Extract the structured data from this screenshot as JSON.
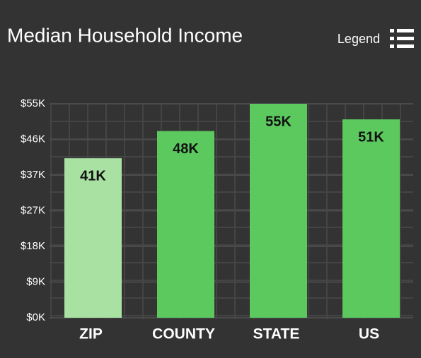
{
  "chart_data": {
    "type": "bar",
    "title": "Median Household Income",
    "legend_button": "Legend",
    "categories": [
      "ZIP",
      "COUNTY",
      "STATE",
      "US"
    ],
    "values": [
      41,
      48,
      55,
      51
    ],
    "value_labels": [
      "41K",
      "48K",
      "55K",
      "51K"
    ],
    "colors": [
      "#a9e1a2",
      "#5cc95e",
      "#5cc95e",
      "#5cc95e"
    ],
    "ylim": [
      0,
      55
    ],
    "yticks": [
      {
        "value": 0,
        "label": "$0K"
      },
      {
        "value": 9.17,
        "label": "$9K"
      },
      {
        "value": 18.33,
        "label": "$18K"
      },
      {
        "value": 27.5,
        "label": "$27K"
      },
      {
        "value": 36.67,
        "label": "$37K"
      },
      {
        "value": 45.83,
        "label": "$46K"
      },
      {
        "value": 55,
        "label": "$55K"
      }
    ],
    "grid": true
  }
}
